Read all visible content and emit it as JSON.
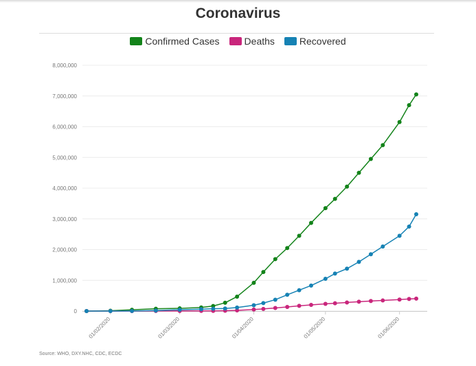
{
  "title": "Coronavirus",
  "source": "Source: WHO, DXY.NHC, CDC, ECDC",
  "colors": {
    "confirmed": "#13831a",
    "deaths": "#c9267c",
    "recovered": "#1682b4",
    "grid": "#ececec",
    "axis_text": "#777777"
  },
  "chart_data": {
    "type": "line",
    "title": "Coronavirus",
    "xlabel": "",
    "ylabel": "",
    "x_axis": "date",
    "xlim": [
      "2020-01-22",
      "2020-06-08"
    ],
    "ylim": [
      0,
      8000000
    ],
    "grid": true,
    "legend_position": "top",
    "x_ticks": [
      "01/02/2020",
      "01/03/2020",
      "01/04/2020",
      "01/05/2020",
      "01/06/2020"
    ],
    "y_ticks": [
      "0",
      "1,000,000",
      "2,000,000",
      "3,000,000",
      "4,000,000",
      "5,000,000",
      "6,000,000",
      "7,000,000",
      "8,000,000"
    ],
    "x": [
      "2020-01-22",
      "2020-02-01",
      "2020-02-10",
      "2020-02-20",
      "2020-03-01",
      "2020-03-10",
      "2020-03-15",
      "2020-03-20",
      "2020-03-25",
      "2020-04-01",
      "2020-04-05",
      "2020-04-10",
      "2020-04-15",
      "2020-04-20",
      "2020-04-25",
      "2020-05-01",
      "2020-05-05",
      "2020-05-10",
      "2020-05-15",
      "2020-05-20",
      "2020-05-25",
      "2020-06-01",
      "2020-06-05",
      "2020-06-08"
    ],
    "series": [
      {
        "name": "Confirmed Cases",
        "color": "#13831a",
        "values": [
          580,
          12000,
          42000,
          76000,
          88000,
          117000,
          165000,
          270000,
          470000,
          920000,
          1270000,
          1690000,
          2050000,
          2450000,
          2870000,
          3350000,
          3650000,
          4050000,
          4500000,
          4950000,
          5400000,
          6150000,
          6700000,
          7050000
        ]
      },
      {
        "name": "Deaths",
        "color": "#c9267c",
        "values": [
          17,
          260,
          1000,
          2250,
          3000,
          4250,
          6500,
          11500,
          22000,
          50000,
          70000,
          100000,
          135000,
          170000,
          200000,
          235000,
          255000,
          280000,
          305000,
          328000,
          345000,
          375000,
          395000,
          405000
        ]
      },
      {
        "name": "Recovered",
        "color": "#1682b4",
        "values": [
          30,
          300,
          3300,
          18000,
          43000,
          62000,
          75000,
          85000,
          115000,
          190000,
          260000,
          370000,
          530000,
          680000,
          830000,
          1050000,
          1220000,
          1380000,
          1600000,
          1850000,
          2100000,
          2450000,
          2750000,
          3150000
        ]
      }
    ]
  }
}
